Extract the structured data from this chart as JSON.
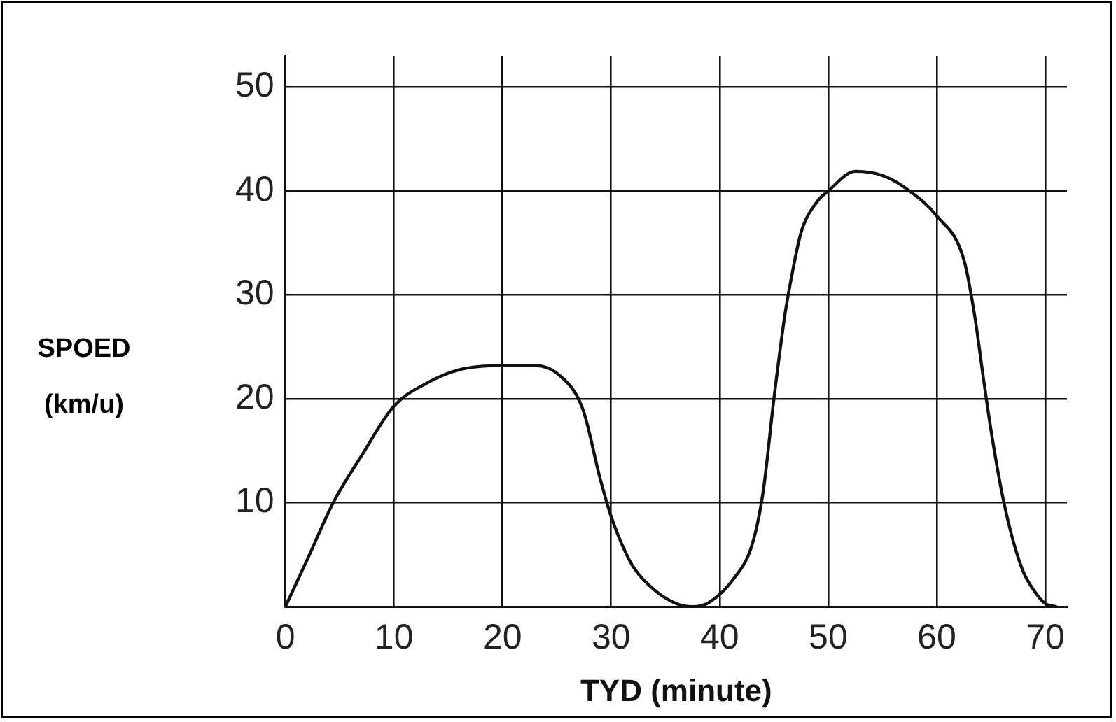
{
  "chart_data": {
    "type": "line",
    "xlabel": "TYD (minute)",
    "ylabel": "SPOED (km/u)",
    "x": [
      0,
      2,
      4.4,
      7,
      10,
      13,
      16,
      20,
      23,
      25.2,
      27.4,
      29,
      30,
      31,
      32,
      34,
      36,
      37.5,
      39,
      41.3,
      43,
      44,
      45,
      46,
      46.6,
      47.5,
      49,
      50,
      52.5,
      55,
      57.5,
      60,
      62.5,
      63.5,
      64.3,
      65,
      66,
      67,
      68,
      69,
      70,
      71
    ],
    "series": [
      {
        "color": "#111111",
        "values": [
          0,
          4.5,
          10,
          14.5,
          19.3,
          21.5,
          22.8,
          23.2,
          23.2,
          22.3,
          19,
          12.3,
          8.7,
          6,
          3.9,
          1.6,
          0.3,
          0,
          0.4,
          2.7,
          6,
          11,
          20,
          28,
          31.6,
          36,
          39,
          40,
          41.9,
          41.5,
          40,
          37.6,
          33.4,
          28,
          22,
          17,
          11,
          6.5,
          3.3,
          1.5,
          0.3,
          0
        ]
      }
    ],
    "xlim": [
      0,
      72
    ],
    "xticks": [
      0,
      10,
      20,
      30,
      40,
      50,
      60,
      70
    ],
    "ylim": [
      0,
      53
    ],
    "yticks": [
      {
        "value": 0,
        "label": null
      },
      10,
      20,
      30,
      40,
      50
    ],
    "grid": true,
    "legend": false,
    "marker": "none",
    "line_style": "solid"
  }
}
